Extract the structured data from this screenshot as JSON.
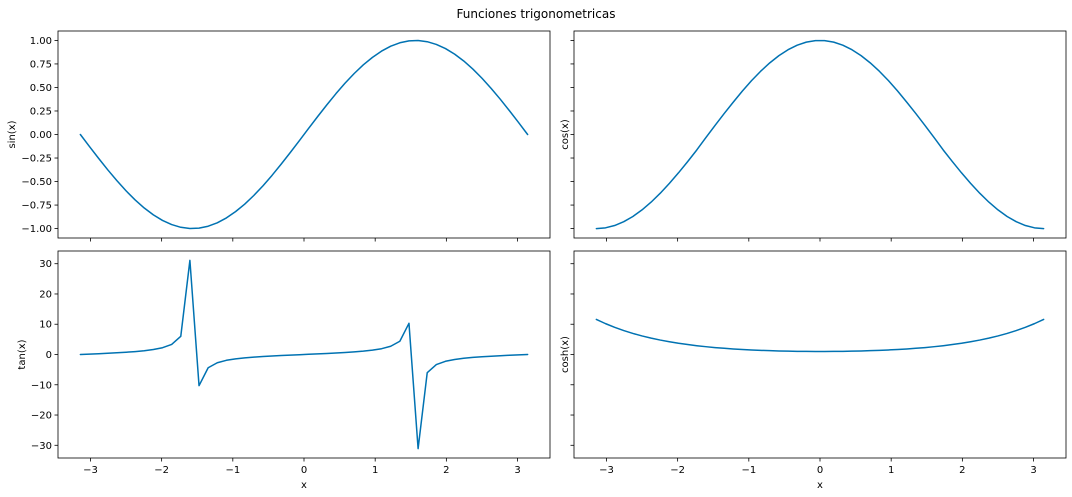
{
  "figure": {
    "suptitle": "Funciones trigonometricas"
  },
  "colors": {
    "line": "#0072b2"
  },
  "chart_data": [
    {
      "type": "line",
      "title": "",
      "xlabel": "",
      "ylabel": "sin(x)",
      "xlim": [
        -3.4558,
        3.4558
      ],
      "ylim": [
        -1.1,
        1.1
      ],
      "xticks": [
        -3,
        -2,
        -1,
        0,
        1,
        2,
        3
      ],
      "xtick_labels": [],
      "yticks": [
        -1.0,
        -0.75,
        -0.5,
        -0.25,
        0.0,
        0.25,
        0.5,
        0.75,
        1.0
      ],
      "ytick_labels": [
        "−1.00",
        "−0.75",
        "−0.50",
        "−0.25",
        "0.00",
        "0.25",
        "0.50",
        "0.75",
        "1.00"
      ],
      "x": [
        -3.1416,
        -3.0134,
        -2.8851,
        -2.7569,
        -2.6287,
        -2.5005,
        -2.3722,
        -2.244,
        -2.1158,
        -1.9875,
        -1.8593,
        -1.7311,
        -1.6029,
        -1.4746,
        -1.3464,
        -1.2182,
        -1.09,
        -0.9617,
        -0.8335,
        -0.7053,
        -0.577,
        -0.4488,
        -0.3206,
        -0.1924,
        -0.0641,
        0.0641,
        0.1924,
        0.3206,
        0.4488,
        0.577,
        0.7053,
        0.8335,
        0.9617,
        1.09,
        1.2182,
        1.3464,
        1.4746,
        1.6029,
        1.7311,
        1.8593,
        1.9875,
        2.1158,
        2.244,
        2.3722,
        2.5005,
        2.6287,
        2.7569,
        2.8851,
        3.0134,
        3.1416
      ],
      "y": [
        0.0,
        -0.1279,
        -0.2537,
        -0.3753,
        -0.4907,
        -0.598,
        -0.6954,
        -0.7814,
        -0.8544,
        -0.9134,
        -0.9575,
        -0.9863,
        -0.9995,
        -0.9953,
        -0.9749,
        -0.9388,
        -0.8866,
        -0.8197,
        -0.7405,
        -0.6482,
        -0.5455,
        -0.4339,
        -0.315,
        -0.1912,
        -0.0641,
        0.0641,
        0.1912,
        0.315,
        0.4339,
        0.5455,
        0.6482,
        0.7405,
        0.8197,
        0.8866,
        0.9388,
        0.9749,
        0.9953,
        0.9995,
        0.9863,
        0.9575,
        0.9134,
        0.8544,
        0.7814,
        0.6954,
        0.598,
        0.4907,
        0.3753,
        0.2537,
        0.1279,
        0.0
      ]
    },
    {
      "type": "line",
      "title": "",
      "xlabel": "",
      "ylabel": "cos(x)",
      "xlim": [
        -3.4558,
        3.4558
      ],
      "ylim": [
        -1.1,
        1.1
      ],
      "xticks": [
        -3,
        -2,
        -1,
        0,
        1,
        2,
        3
      ],
      "xtick_labels": [],
      "yticks": [
        -1.0,
        -0.75,
        -0.5,
        -0.25,
        0.0,
        0.25,
        0.5,
        0.75,
        1.0
      ],
      "ytick_labels": [],
      "x": [
        -3.1416,
        -3.0134,
        -2.8851,
        -2.7569,
        -2.6287,
        -2.5005,
        -2.3722,
        -2.244,
        -2.1158,
        -1.9875,
        -1.8593,
        -1.7311,
        -1.6029,
        -1.4746,
        -1.3464,
        -1.2182,
        -1.09,
        -0.9617,
        -0.8335,
        -0.7053,
        -0.577,
        -0.4488,
        -0.3206,
        -0.1924,
        -0.0641,
        0.0641,
        0.1924,
        0.3206,
        0.4488,
        0.577,
        0.7053,
        0.8335,
        0.9617,
        1.09,
        1.2182,
        1.3464,
        1.4746,
        1.6029,
        1.7311,
        1.8593,
        1.9875,
        2.1158,
        2.244,
        2.3722,
        2.5005,
        2.6287,
        2.7569,
        2.8851,
        3.0134,
        3.1416
      ],
      "y": [
        -1.0,
        -0.9918,
        -0.9673,
        -0.9269,
        -0.8713,
        -0.8014,
        -0.7186,
        -0.6241,
        -0.5196,
        -0.4069,
        -0.2879,
        -0.1646,
        -0.0321,
        0.0961,
        0.2225,
        0.3444,
        0.4625,
        0.5727,
        0.6725,
        0.7614,
        0.838,
        0.9011,
        0.9491,
        0.9816,
        0.9979,
        0.9979,
        0.9816,
        0.9491,
        0.9011,
        0.838,
        0.7614,
        0.6725,
        0.5727,
        0.4625,
        0.3444,
        0.2225,
        0.0961,
        -0.0321,
        -0.1646,
        -0.2879,
        -0.4069,
        -0.5196,
        -0.6241,
        -0.7186,
        -0.8014,
        -0.8713,
        -0.9269,
        -0.9673,
        -0.9918,
        -1.0
      ]
    },
    {
      "type": "line",
      "title": "",
      "xlabel": "x",
      "ylabel": "tan(x)",
      "xlim": [
        -3.4558,
        3.4558
      ],
      "ylim": [
        -34.2,
        34.2
      ],
      "xticks": [
        -3,
        -2,
        -1,
        0,
        1,
        2,
        3
      ],
      "xtick_labels": [
        "−3",
        "−2",
        "−1",
        "0",
        "1",
        "2",
        "3"
      ],
      "yticks": [
        -30,
        -20,
        -10,
        0,
        10,
        20,
        30
      ],
      "ytick_labels": [
        "−30",
        "−20",
        "−10",
        "0",
        "10",
        "20",
        "30"
      ],
      "x": [
        -3.1416,
        -3.0134,
        -2.8851,
        -2.7569,
        -2.6287,
        -2.5005,
        -2.3722,
        -2.244,
        -2.1158,
        -1.9875,
        -1.8593,
        -1.7311,
        -1.6029,
        -1.4746,
        -1.3464,
        -1.2182,
        -1.09,
        -0.9617,
        -0.8335,
        -0.7053,
        -0.577,
        -0.4488,
        -0.3206,
        -0.1924,
        -0.0641,
        0.0641,
        0.1924,
        0.3206,
        0.4488,
        0.577,
        0.7053,
        0.8335,
        0.9617,
        1.09,
        1.2182,
        1.3464,
        1.4746,
        1.6029,
        1.7311,
        1.8593,
        1.9875,
        2.1158,
        2.244,
        2.3722,
        2.5005,
        2.6287,
        2.7569,
        2.8851,
        3.0134,
        3.1416
      ],
      "y": [
        0.0,
        0.129,
        0.2623,
        0.4049,
        0.5632,
        0.7462,
        0.9677,
        1.2519,
        1.6443,
        2.2446,
        3.3248,
        5.9903,
        31.1,
        -10.3,
        -4.381,
        -2.726,
        -1.917,
        -1.431,
        -1.101,
        -0.851,
        -0.651,
        -0.4817,
        -0.3319,
        -0.1948,
        -0.0642,
        0.0642,
        0.1948,
        0.3319,
        0.4817,
        0.651,
        0.851,
        1.101,
        1.431,
        1.917,
        2.726,
        4.381,
        10.3,
        -31.1,
        -5.9903,
        -3.3248,
        -2.2446,
        -1.6443,
        -1.2519,
        -0.9677,
        -0.7462,
        -0.5632,
        -0.4049,
        -0.2623,
        -0.129,
        0.0
      ]
    },
    {
      "type": "line",
      "title": "",
      "xlabel": "x",
      "ylabel": "cosh(x)",
      "xlim": [
        -3.4558,
        3.4558
      ],
      "ylim": [
        -34.2,
        34.2
      ],
      "xticks": [
        -3,
        -2,
        -1,
        0,
        1,
        2,
        3
      ],
      "xtick_labels": [
        "−3",
        "−2",
        "−1",
        "0",
        "1",
        "2",
        "3"
      ],
      "yticks": [
        -30,
        -20,
        -10,
        0,
        10,
        20,
        30
      ],
      "ytick_labels": [],
      "x": [
        -3.1416,
        -3.0134,
        -2.8851,
        -2.7569,
        -2.6287,
        -2.5005,
        -2.3722,
        -2.244,
        -2.1158,
        -1.9875,
        -1.8593,
        -1.7311,
        -1.6029,
        -1.4746,
        -1.3464,
        -1.2182,
        -1.09,
        -0.9617,
        -0.8335,
        -0.7053,
        -0.577,
        -0.4488,
        -0.3206,
        -0.1924,
        -0.0641,
        0.0641,
        0.1924,
        0.3206,
        0.4488,
        0.577,
        0.7053,
        0.8335,
        0.9617,
        1.09,
        1.2182,
        1.3464,
        1.4746,
        1.6029,
        1.7311,
        1.8593,
        1.9875,
        2.1158,
        2.244,
        2.3722,
        2.5005,
        2.6287,
        2.7569,
        2.8851,
        3.0134,
        3.1416
      ],
      "y": [
        11.592,
        10.203,
        8.977,
        7.902,
        6.958,
        6.135,
        5.406,
        4.768,
        4.211,
        3.715,
        3.287,
        2.909,
        2.581,
        2.291,
        2.049,
        1.838,
        1.655,
        1.501,
        1.368,
        1.262,
        1.171,
        1.102,
        1.052,
        1.019,
        1.002,
        1.002,
        1.019,
        1.052,
        1.102,
        1.171,
        1.262,
        1.368,
        1.501,
        1.655,
        1.838,
        2.049,
        2.291,
        2.581,
        2.909,
        3.287,
        3.715,
        4.211,
        4.768,
        5.406,
        6.135,
        6.958,
        7.902,
        8.977,
        10.203,
        11.592
      ]
    }
  ]
}
